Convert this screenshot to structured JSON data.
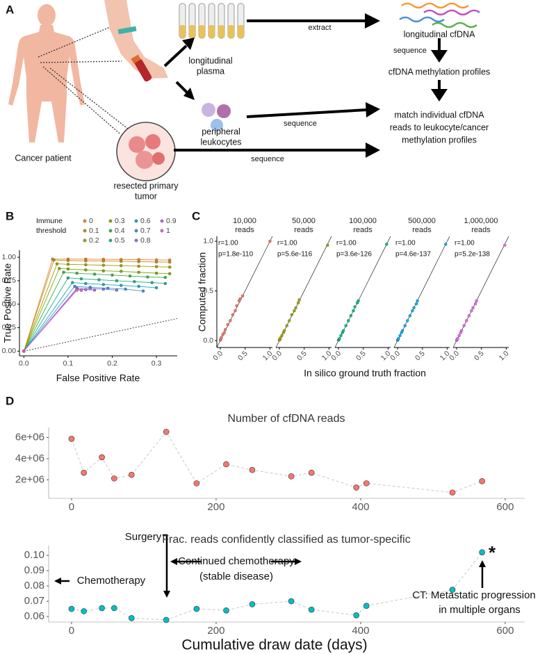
{
  "panel_labels": [
    "A",
    "B",
    "C",
    "D"
  ],
  "panel_a": {
    "patient": "Cancer patient",
    "plasma": [
      "longitudinal",
      "plasma"
    ],
    "leukocytes": [
      "peripheral",
      "leukocytes"
    ],
    "tumor": [
      "resected primary",
      "tumor"
    ],
    "extract": "extract",
    "sequence": [
      "sequence",
      "sequence",
      "sequence"
    ],
    "cfdna": "longitudinal cfDNA",
    "methylation": "cfDNA methylation profiles",
    "match": [
      "match individual cfDNA",
      "reads to leukocyte/cancer",
      "methylation profiles"
    ]
  },
  "chart_data": [
    {
      "type": "line",
      "x_label": "False Positive Rate",
      "y_label": "True Positive Rate",
      "legend_title": [
        "Immune",
        "threshold"
      ],
      "xlim": [
        -0.01,
        0.347
      ],
      "ylim": [
        -0.05,
        1.075
      ],
      "xticks": [
        {
          "value": 0,
          "label": "0.0"
        },
        0.1,
        0.2,
        0.3
      ],
      "yticks": [
        {
          "value": 0,
          "label": "0.00"
        },
        0.25,
        {
          "value": 0.5,
          "label": "0.50"
        },
        0.75,
        {
          "value": 1,
          "label": "1.00"
        }
      ],
      "series": [
        {
          "name": "0",
          "color": "#e9842c",
          "x": [
            0,
            0.065,
            0.1,
            0.14,
            0.18,
            0.22,
            0.26,
            0.3,
            0.33
          ],
          "values": [
            0,
            0.98,
            0.98,
            0.98,
            0.978,
            0.976,
            0.975,
            0.972,
            0.97
          ]
        },
        {
          "name": "0.1",
          "color": "#c08a17",
          "x": [
            0,
            0.068,
            0.1,
            0.14,
            0.18,
            0.22,
            0.26,
            0.3,
            0.33
          ],
          "values": [
            0,
            0.97,
            0.965,
            0.962,
            0.96,
            0.957,
            0.953,
            0.95,
            0.948
          ]
        },
        {
          "name": "0.2",
          "color": "#a79c00",
          "x": [
            0,
            0.075,
            0.1,
            0.14,
            0.18,
            0.22,
            0.26,
            0.3,
            0.33
          ],
          "values": [
            0,
            0.93,
            0.925,
            0.92,
            0.915,
            0.91,
            0.905,
            0.9,
            0.895
          ]
        },
        {
          "name": "0.3",
          "color": "#7da800",
          "x": [
            0,
            0.08,
            0.1,
            0.14,
            0.18,
            0.22,
            0.26,
            0.3,
            0.33
          ],
          "values": [
            0,
            0.88,
            0.875,
            0.865,
            0.855,
            0.85,
            0.84,
            0.83,
            0.825
          ]
        },
        {
          "name": "0.4",
          "color": "#3fb04a",
          "x": [
            0,
            0.09,
            0.12,
            0.16,
            0.2,
            0.24,
            0.28,
            0.32
          ],
          "values": [
            0,
            0.84,
            0.83,
            0.82,
            0.81,
            0.8,
            0.79,
            0.785
          ]
        },
        {
          "name": "0.5",
          "color": "#1fb08a",
          "x": [
            0,
            0.1,
            0.13,
            0.17,
            0.21,
            0.25,
            0.29,
            0.32
          ],
          "values": [
            0,
            0.78,
            0.77,
            0.76,
            0.75,
            0.74,
            0.73,
            0.72
          ]
        },
        {
          "name": "0.6",
          "color": "#1aa8b8",
          "x": [
            0,
            0.11,
            0.14,
            0.18,
            0.22,
            0.26,
            0.3
          ],
          "values": [
            0,
            0.73,
            0.72,
            0.71,
            0.7,
            0.69,
            0.675
          ]
        },
        {
          "name": "0.7",
          "color": "#3d8fd9",
          "x": [
            0,
            0.115,
            0.15,
            0.19,
            0.23,
            0.27
          ],
          "values": [
            0,
            0.69,
            0.68,
            0.67,
            0.66,
            0.64
          ]
        },
        {
          "name": "0.8",
          "color": "#7b78e0",
          "x": [
            0,
            0.12,
            0.15,
            0.18,
            0.21
          ],
          "values": [
            0,
            0.67,
            0.665,
            0.66,
            0.65
          ]
        },
        {
          "name": "0.9",
          "color": "#b268dd",
          "x": [
            0,
            0.12,
            0.14,
            0.16
          ],
          "values": [
            0,
            0.66,
            0.655,
            0.65
          ]
        },
        {
          "name": "1",
          "color": "#e066c0",
          "x": [
            0,
            0.12,
            0.13
          ],
          "values": [
            0,
            0.65,
            0.648
          ]
        }
      ]
    },
    {
      "type": "scatter",
      "x_label": "In silico ground truth fraction",
      "y_label": "Computed fraction",
      "xlim": [
        -0.07,
        1.05
      ],
      "ylim": [
        -0.07,
        1.05
      ],
      "xticks": [
        {
          "value": 0,
          "label": "0.0"
        },
        0.5,
        {
          "value": 1,
          "label": "1.0"
        }
      ],
      "yticks": [
        {
          "value": 0,
          "label": "0.0"
        },
        0.5,
        {
          "value": 1,
          "label": "1.0"
        }
      ],
      "panels": [
        {
          "title": [
            "10,000",
            "reads"
          ],
          "stats": [
            "r=1.00",
            "p=1.8e-110"
          ],
          "color": "#F8766D",
          "x": [
            0,
            0.01,
            0.02,
            0.05,
            0.08,
            0.1,
            0.15,
            0.2,
            0.25,
            0.3,
            0.33,
            0.38,
            0.4,
            0.45,
            1
          ],
          "y": [
            0.005,
            0.012,
            0.03,
            0.06,
            0.08,
            0.11,
            0.16,
            0.2,
            0.26,
            0.3,
            0.35,
            0.4,
            0.42,
            0.45,
            1
          ]
        },
        {
          "title": [
            "50,000",
            "reads"
          ],
          "stats": [
            "r=1.00",
            "p=5.6e-116"
          ],
          "color": "#A3A500",
          "x": [
            0,
            0.01,
            0.02,
            0.05,
            0.08,
            0.1,
            0.15,
            0.2,
            0.25,
            0.3,
            0.33,
            0.38,
            0.4,
            0.97
          ],
          "y": [
            0.005,
            0.01,
            0.025,
            0.05,
            0.08,
            0.1,
            0.15,
            0.2,
            0.26,
            0.3,
            0.33,
            0.38,
            0.41,
            0.96
          ]
        },
        {
          "title": [
            "100,000",
            "reads"
          ],
          "stats": [
            "r=1.00",
            "p=3.6e-126"
          ],
          "color": "#00BF7D",
          "x": [
            0,
            0.01,
            0.02,
            0.05,
            0.08,
            0.1,
            0.15,
            0.2,
            0.25,
            0.3,
            0.33,
            0.38,
            0.4,
            0.97
          ],
          "y": [
            0.004,
            0.01,
            0.02,
            0.05,
            0.08,
            0.1,
            0.15,
            0.2,
            0.25,
            0.3,
            0.34,
            0.38,
            0.4,
            0.97
          ]
        },
        {
          "title": [
            "500,000",
            "reads"
          ],
          "stats": [
            "r=1.00",
            "p=4.6e-137"
          ],
          "color": "#00B0F6",
          "x": [
            0,
            0.01,
            0.02,
            0.05,
            0.08,
            0.1,
            0.15,
            0.2,
            0.25,
            0.3,
            0.33,
            0.38,
            0.4,
            0.97
          ],
          "y": [
            0.003,
            0.01,
            0.02,
            0.05,
            0.08,
            0.1,
            0.15,
            0.2,
            0.25,
            0.3,
            0.33,
            0.37,
            0.4,
            0.97
          ]
        },
        {
          "title": [
            "1,000,000",
            "reads"
          ],
          "stats": [
            "r=1.00",
            "p=5.2e-138"
          ],
          "color": "#E76BF3",
          "x": [
            0,
            0.01,
            0.02,
            0.05,
            0.08,
            0.1,
            0.15,
            0.2,
            0.25,
            0.3,
            0.33,
            0.38,
            0.4,
            0.97
          ],
          "y": [
            0.002,
            0.01,
            0.02,
            0.05,
            0.08,
            0.1,
            0.15,
            0.2,
            0.25,
            0.3,
            0.33,
            0.37,
            0.4,
            0.96
          ]
        }
      ]
    },
    {
      "type": "line",
      "title": "Number of cfDNA reads",
      "color": "#F8766D",
      "line_color": "#c8c8c8",
      "x": [
        0,
        17,
        42,
        59,
        83,
        131,
        173,
        214,
        250,
        304,
        332,
        394,
        408,
        527,
        568
      ],
      "values": [
        5870000,
        2670000,
        4130000,
        2130000,
        2470000,
        6530000,
        1670000,
        3470000,
        2930000,
        2330000,
        2670000,
        1270000,
        1670000,
        800000,
        1870000
      ],
      "xlim": [
        -31.7,
        627
      ],
      "ylim": [
        250000,
        6950000
      ],
      "xticks": [
        0,
        200,
        400,
        600
      ],
      "yticks": [
        {
          "value": 2000000,
          "label": "2e+06"
        },
        {
          "value": 4000000,
          "label": "4e+06"
        },
        {
          "value": 6000000,
          "label": "6e+06"
        }
      ]
    },
    {
      "type": "line",
      "title": "Frac. reads confidently classified as tumor-specific",
      "x_label": "Cumulative draw date (days)",
      "color": "#00BFC4",
      "line_color": "#c8c8c8",
      "x": [
        0,
        17,
        42,
        59,
        83,
        131,
        173,
        214,
        250,
        304,
        332,
        394,
        408,
        527,
        568
      ],
      "values": [
        0.065,
        0.0635,
        0.0655,
        0.0655,
        0.059,
        0.0578,
        0.065,
        0.064,
        0.068,
        0.07,
        0.0645,
        0.0608,
        0.067,
        0.0775,
        0.102
      ],
      "xlim": [
        -31.7,
        627
      ],
      "ylim": [
        0.0564,
        0.1064
      ],
      "xticks": [
        0,
        200,
        400,
        600
      ],
      "yticks": [
        0.06,
        0.07,
        0.08,
        0.09,
        {
          "value": 0.1,
          "label": "0.10"
        }
      ],
      "annotations": [
        "Surgery",
        "Chemotherapy",
        "Continued chemotherapy",
        "(stable disease)",
        "CT: Metastatic progression",
        "in multiple organs",
        "*"
      ]
    }
  ]
}
